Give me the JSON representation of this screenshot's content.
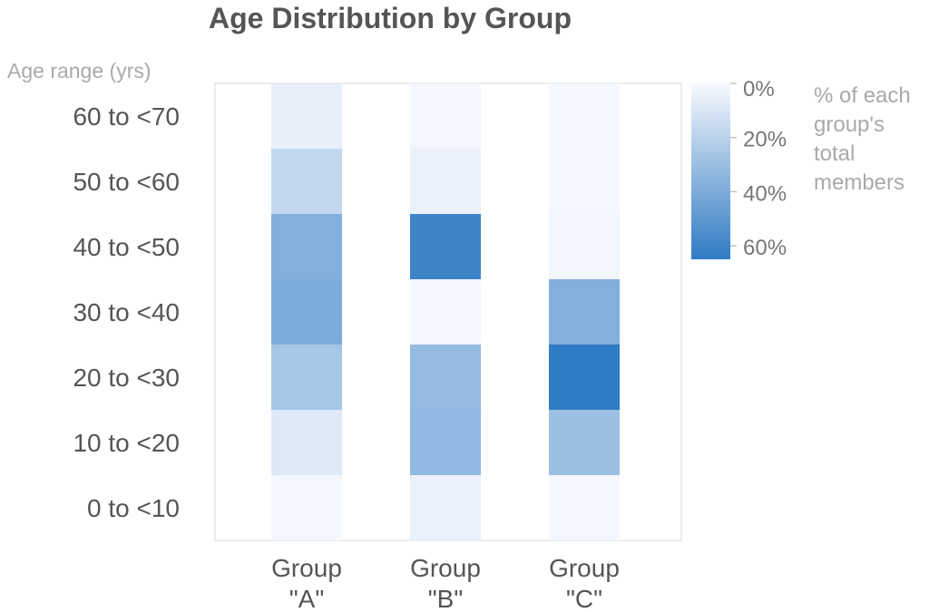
{
  "chart_data": {
    "type": "heatmap",
    "title": "Age Distribution by Group",
    "ylabel": "Age range (yrs)",
    "xlabel": "",
    "categories": [
      "Group \"A\"",
      "Group \"B\"",
      "Group \"C\""
    ],
    "category_lines": [
      [
        "Group",
        "\"A\""
      ],
      [
        "Group",
        "\"B\""
      ],
      [
        "Group",
        "\"C\""
      ]
    ],
    "age_ranges": [
      "60 to <70",
      "50 to <60",
      "40 to <50",
      "30 to <40",
      "20 to <30",
      "10 to <20",
      "0 to <10"
    ],
    "value_units": "%",
    "values": [
      [
        5,
        1,
        1
      ],
      [
        17,
        4,
        1
      ],
      [
        38,
        60,
        2
      ],
      [
        40,
        1,
        38
      ],
      [
        26,
        32,
        65
      ],
      [
        8,
        33,
        30
      ],
      [
        1,
        4,
        1
      ]
    ],
    "color_scale": {
      "min": 0,
      "max": 65,
      "low_color": "#f7f9fe",
      "high_color": "#2f7bc4",
      "ticks": [
        0,
        20,
        40,
        60
      ],
      "tick_labels": [
        "0%",
        "20%",
        "40%",
        "60%"
      ],
      "title_lines": [
        "% of each",
        "group's",
        "total",
        "members"
      ]
    },
    "grid": false,
    "legend_position": "right"
  }
}
